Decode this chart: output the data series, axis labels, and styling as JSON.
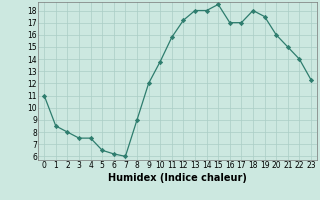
{
  "x": [
    0,
    1,
    2,
    3,
    4,
    5,
    6,
    7,
    8,
    9,
    10,
    11,
    12,
    13,
    14,
    15,
    16,
    17,
    18,
    19,
    20,
    21,
    22,
    23
  ],
  "y": [
    11,
    8.5,
    8,
    7.5,
    7.5,
    6.5,
    6.2,
    6,
    9,
    12,
    13.8,
    15.8,
    17.2,
    18,
    18,
    18.5,
    17,
    17,
    18,
    17.5,
    16,
    15,
    14,
    12.3
  ],
  "line_color": "#2e7d6e",
  "marker_color": "#2e7d6e",
  "bg_color": "#cce8e0",
  "grid_color": "#aacec6",
  "xlabel": "Humidex (Indice chaleur)",
  "xlim": [
    -0.5,
    23.5
  ],
  "ylim": [
    5.7,
    18.7
  ],
  "yticks": [
    6,
    7,
    8,
    9,
    10,
    11,
    12,
    13,
    14,
    15,
    16,
    17,
    18
  ],
  "xticks": [
    0,
    1,
    2,
    3,
    4,
    5,
    6,
    7,
    8,
    9,
    10,
    11,
    12,
    13,
    14,
    15,
    16,
    17,
    18,
    19,
    20,
    21,
    22,
    23
  ],
  "xlabel_fontsize": 7.0,
  "tick_fontsize": 5.5
}
